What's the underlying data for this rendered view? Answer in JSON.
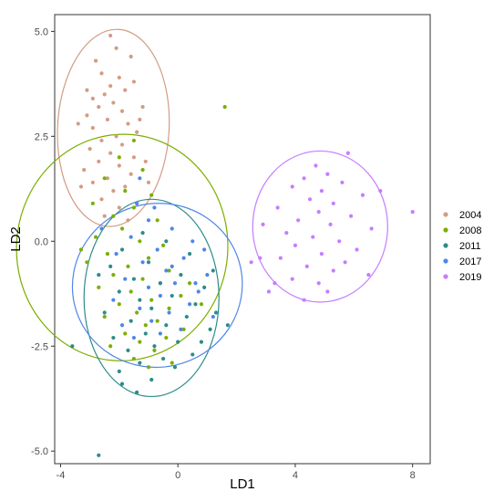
{
  "chart_data": {
    "type": "scatter",
    "title": "",
    "xlabel": "LD1",
    "ylabel": "LD2",
    "xlim": [
      -4.2,
      8.6
    ],
    "ylim": [
      -5.3,
      5.4
    ],
    "x_ticks": [
      -4,
      0,
      4,
      8
    ],
    "x_tick_labels": [
      "-4",
      "0",
      "4",
      "8"
    ],
    "y_ticks": [
      -5.0,
      -2.5,
      0.0,
      2.5,
      5.0
    ],
    "y_tick_labels": [
      "-5.0",
      "-2.5",
      "0.0",
      "2.5",
      "5.0"
    ],
    "grid": false,
    "legend_position": "right",
    "series": [
      {
        "name": "2004",
        "color": "#D39C83",
        "ellipse": {
          "cx": -2.2,
          "cy": 2.7,
          "rx": 1.9,
          "ry": 2.35,
          "angle_deg": -3
        },
        "points": [
          [
            -2.1,
            4.6
          ],
          [
            -1.6,
            4.4
          ],
          [
            -2.6,
            4.0
          ],
          [
            -2.0,
            3.9
          ],
          [
            -2.3,
            3.7
          ],
          [
            -1.8,
            3.6
          ],
          [
            -2.5,
            3.5
          ],
          [
            -2.9,
            3.4
          ],
          [
            -1.5,
            3.8
          ],
          [
            -2.2,
            3.3
          ],
          [
            -2.7,
            3.2
          ],
          [
            -1.9,
            3.1
          ],
          [
            -3.1,
            3.0
          ],
          [
            -2.4,
            2.9
          ],
          [
            -1.7,
            2.8
          ],
          [
            -2.9,
            2.7
          ],
          [
            -1.4,
            2.6
          ],
          [
            -2.1,
            2.5
          ],
          [
            -2.6,
            2.4
          ],
          [
            -1.9,
            2.3
          ],
          [
            -3.0,
            2.2
          ],
          [
            -2.3,
            2.1
          ],
          [
            -1.5,
            2.0
          ],
          [
            -2.7,
            1.9
          ],
          [
            -2.0,
            1.8
          ],
          [
            -3.2,
            1.7
          ],
          [
            -1.6,
            1.6
          ],
          [
            -2.4,
            1.5
          ],
          [
            -2.9,
            1.4
          ],
          [
            -1.8,
            1.3
          ],
          [
            -2.2,
            1.2
          ],
          [
            -2.6,
            1.0
          ],
          [
            -1.4,
            0.9
          ],
          [
            -2.0,
            0.8
          ],
          [
            -3.1,
            3.6
          ],
          [
            -1.2,
            3.2
          ],
          [
            -2.8,
            4.3
          ],
          [
            -1.3,
            2.9
          ],
          [
            -3.4,
            2.8
          ],
          [
            -1.1,
            1.9
          ],
          [
            -2.5,
            0.6
          ],
          [
            -1.0,
            1.4
          ],
          [
            -2.3,
            4.9
          ],
          [
            -3.3,
            1.3
          ],
          [
            -1.7,
            0.5
          ]
        ]
      },
      {
        "name": "2008",
        "color": "#7CAE00",
        "ellipse": {
          "cx": -1.9,
          "cy": -0.15,
          "rx": 3.6,
          "ry": 2.7,
          "angle_deg": -5
        },
        "points": [
          [
            -1.5,
            2.4
          ],
          [
            -2.0,
            2.0
          ],
          [
            -1.2,
            1.7
          ],
          [
            -2.5,
            1.5
          ],
          [
            -1.8,
            1.2
          ],
          [
            -0.9,
            1.1
          ],
          [
            -2.9,
            0.9
          ],
          [
            -1.5,
            0.8
          ],
          [
            -2.2,
            0.6
          ],
          [
            -0.7,
            0.5
          ],
          [
            -1.9,
            0.3
          ],
          [
            -2.8,
            0.1
          ],
          [
            -1.3,
            0.0
          ],
          [
            -0.5,
            -0.1
          ],
          [
            -2.4,
            -0.3
          ],
          [
            -1.0,
            -0.4
          ],
          [
            -3.1,
            -0.5
          ],
          [
            -1.7,
            -0.6
          ],
          [
            -0.3,
            -0.7
          ],
          [
            -2.2,
            -0.8
          ],
          [
            -1.2,
            -0.9
          ],
          [
            -0.6,
            -1.0
          ],
          [
            -2.7,
            -1.1
          ],
          [
            -1.6,
            -1.2
          ],
          [
            0.1,
            -1.3
          ],
          [
            -0.9,
            -1.4
          ],
          [
            -2.0,
            -1.5
          ],
          [
            -0.3,
            -1.6
          ],
          [
            -1.4,
            -1.7
          ],
          [
            -2.5,
            -1.8
          ],
          [
            -0.7,
            -1.9
          ],
          [
            -1.1,
            -2.0
          ],
          [
            0.2,
            -2.1
          ],
          [
            -1.8,
            -2.2
          ],
          [
            -0.4,
            -2.3
          ],
          [
            -1.3,
            -2.4
          ],
          [
            -2.3,
            -2.5
          ],
          [
            -0.8,
            -2.6
          ],
          [
            -1.5,
            -2.8
          ],
          [
            -0.2,
            -2.9
          ],
          [
            1.6,
            3.2
          ],
          [
            0.4,
            -1.0
          ],
          [
            0.8,
            -1.5
          ],
          [
            -3.3,
            -0.2
          ],
          [
            -1.0,
            -3.0
          ]
        ]
      },
      {
        "name": "2011",
        "color": "#2E8B8B",
        "ellipse": {
          "cx": -0.9,
          "cy": -1.35,
          "rx": 2.3,
          "ry": 2.35,
          "angle_deg": 0
        },
        "points": [
          [
            -1.2,
            0.2
          ],
          [
            -0.4,
            0.0
          ],
          [
            -1.9,
            -0.2
          ],
          [
            0.4,
            -0.3
          ],
          [
            -1.0,
            -0.5
          ],
          [
            -2.3,
            -0.6
          ],
          [
            0.1,
            -0.8
          ],
          [
            -1.5,
            -0.9
          ],
          [
            -0.6,
            -1.0
          ],
          [
            0.9,
            -1.1
          ],
          [
            -2.0,
            -1.2
          ],
          [
            -0.2,
            -1.3
          ],
          [
            -1.3,
            -1.4
          ],
          [
            0.6,
            -1.5
          ],
          [
            -0.9,
            -1.6
          ],
          [
            -2.5,
            -1.7
          ],
          [
            0.3,
            -1.8
          ],
          [
            -1.6,
            -1.9
          ],
          [
            -0.4,
            -2.0
          ],
          [
            1.1,
            -2.1
          ],
          [
            -1.1,
            -2.2
          ],
          [
            -2.2,
            -2.3
          ],
          [
            0.0,
            -2.4
          ],
          [
            -0.8,
            -2.5
          ],
          [
            -1.7,
            -2.6
          ],
          [
            0.5,
            -2.7
          ],
          [
            -0.5,
            -2.8
          ],
          [
            -1.3,
            -2.9
          ],
          [
            -2.0,
            -3.1
          ],
          [
            -0.9,
            -3.3
          ],
          [
            -3.6,
            -2.5
          ],
          [
            -1.4,
            -3.6
          ],
          [
            -2.7,
            -5.1
          ],
          [
            1.3,
            -1.7
          ],
          [
            1.7,
            -2.0
          ],
          [
            -0.1,
            -3.0
          ],
          [
            -1.9,
            -3.4
          ],
          [
            0.8,
            -2.4
          ],
          [
            -2.7,
            -0.8
          ],
          [
            1.2,
            -0.7
          ]
        ]
      },
      {
        "name": "2017",
        "color": "#4F86E6",
        "ellipse": {
          "cx": -0.7,
          "cy": -1.05,
          "rx": 2.9,
          "ry": 1.95,
          "angle_deg": 12
        },
        "points": [
          [
            -1.0,
            0.5
          ],
          [
            -0.2,
            0.3
          ],
          [
            -1.6,
            0.1
          ],
          [
            0.5,
            0.0
          ],
          [
            -0.7,
            -0.2
          ],
          [
            -2.1,
            -0.3
          ],
          [
            0.2,
            -0.4
          ],
          [
            -1.2,
            -0.5
          ],
          [
            -0.4,
            -0.7
          ],
          [
            1.0,
            -0.8
          ],
          [
            -1.8,
            -0.9
          ],
          [
            -0.1,
            -1.0
          ],
          [
            -1.0,
            -1.1
          ],
          [
            0.7,
            -1.2
          ],
          [
            -0.6,
            -1.3
          ],
          [
            -2.2,
            -1.4
          ],
          [
            0.4,
            -1.5
          ],
          [
            -1.3,
            -1.6
          ],
          [
            -0.3,
            -1.7
          ],
          [
            1.2,
            -1.8
          ],
          [
            -0.9,
            -1.9
          ],
          [
            -1.9,
            -2.0
          ],
          [
            0.1,
            -2.1
          ],
          [
            -0.6,
            -2.2
          ],
          [
            -1.5,
            -2.3
          ],
          [
            0.6,
            -1.0
          ],
          [
            -0.2,
            -0.6
          ],
          [
            -1.4,
            0.9
          ],
          [
            -2.6,
            0.3
          ],
          [
            0.9,
            -0.2
          ],
          [
            -0.8,
            0.8
          ],
          [
            -1.3,
            1.5
          ]
        ]
      },
      {
        "name": "2019",
        "color": "#C77CFF",
        "ellipse": {
          "cx": 4.85,
          "cy": 0.35,
          "rx": 2.3,
          "ry": 1.8,
          "angle_deg": 0
        },
        "points": [
          [
            4.7,
            1.8
          ],
          [
            5.1,
            1.6
          ],
          [
            4.3,
            1.5
          ],
          [
            5.6,
            1.4
          ],
          [
            3.9,
            1.3
          ],
          [
            4.9,
            1.2
          ],
          [
            6.3,
            1.1
          ],
          [
            4.5,
            1.0
          ],
          [
            5.3,
            0.9
          ],
          [
            3.4,
            0.8
          ],
          [
            4.8,
            0.7
          ],
          [
            5.9,
            0.6
          ],
          [
            4.1,
            0.5
          ],
          [
            5.2,
            0.4
          ],
          [
            6.6,
            0.3
          ],
          [
            3.7,
            0.2
          ],
          [
            4.6,
            0.1
          ],
          [
            5.5,
            0.0
          ],
          [
            4.0,
            -0.1
          ],
          [
            6.1,
            -0.2
          ],
          [
            4.9,
            -0.3
          ],
          [
            3.5,
            -0.4
          ],
          [
            5.7,
            -0.5
          ],
          [
            4.4,
            -0.6
          ],
          [
            5.3,
            -0.7
          ],
          [
            6.5,
            -0.8
          ],
          [
            3.9,
            -0.9
          ],
          [
            4.8,
            -1.0
          ],
          [
            5.1,
            -1.2
          ],
          [
            4.3,
            -1.4
          ],
          [
            2.9,
            0.4
          ],
          [
            2.8,
            -0.4
          ],
          [
            8.0,
            0.7
          ],
          [
            3.1,
            -1.2
          ],
          [
            6.9,
            1.2
          ],
          [
            5.8,
            2.1
          ],
          [
            2.5,
            -0.5
          ],
          [
            3.3,
            -1.0
          ]
        ]
      }
    ]
  }
}
